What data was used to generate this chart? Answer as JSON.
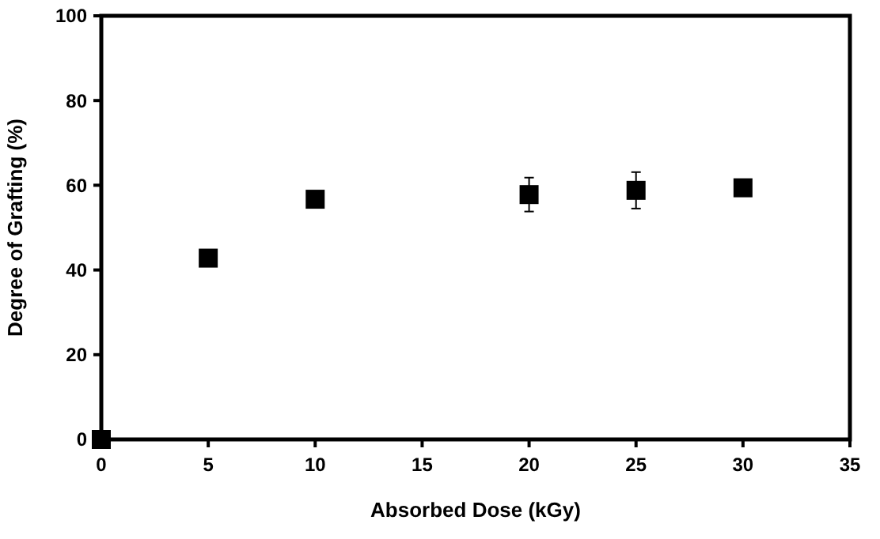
{
  "chart_data": {
    "type": "scatter",
    "xlabel": "Absorbed Dose (kGy)",
    "ylabel": "Degree of Grafting (%)",
    "x": [
      0,
      5,
      10,
      20,
      25,
      30
    ],
    "values": [
      0,
      42.8,
      56.7,
      57.8,
      58.8,
      59.4
    ],
    "errors": [
      null,
      1.5,
      1,
      4,
      4.3,
      1.2
    ],
    "color": "#000000",
    "marker": "square",
    "xlim": [
      0,
      35
    ],
    "xticks": [
      0,
      5,
      10,
      15,
      20,
      25,
      30,
      35
    ],
    "ylim": [
      0,
      100
    ],
    "yticks": [
      0,
      20,
      40,
      60,
      80,
      100
    ],
    "grid": false
  }
}
